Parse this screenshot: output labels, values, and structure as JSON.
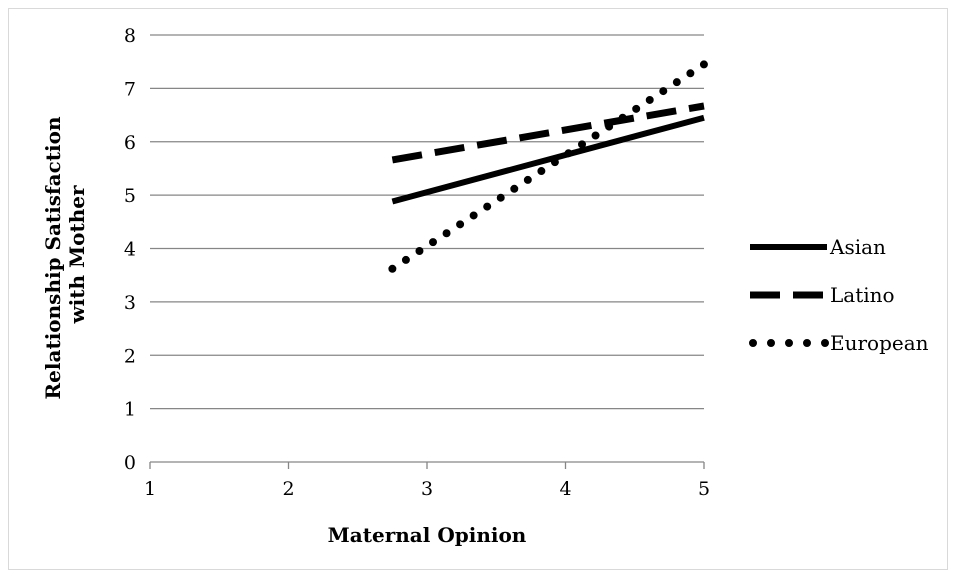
{
  "chart_data": {
    "type": "line",
    "xlabel": "Maternal Opinion",
    "ylabel_lines": [
      "Relationship Satisfaction",
      "with Mother"
    ],
    "xlim": [
      1,
      5
    ],
    "ylim": [
      0,
      8
    ],
    "x_ticks": [
      1,
      2,
      3,
      4,
      5
    ],
    "y_ticks": [
      0,
      1,
      2,
      3,
      4,
      5,
      6,
      7,
      8
    ],
    "grid": "horizontal",
    "legend_position": "right",
    "series": [
      {
        "name": "Asian",
        "style": "solid",
        "color": "#000000",
        "x": [
          2.75,
          5.0
        ],
        "y": [
          4.88,
          6.45
        ]
      },
      {
        "name": "Latino",
        "style": "dashed",
        "color": "#000000",
        "x": [
          2.75,
          5.0
        ],
        "y": [
          5.66,
          6.67
        ]
      },
      {
        "name": "European",
        "style": "dotted",
        "color": "#000000",
        "x": [
          2.75,
          5.0
        ],
        "y": [
          3.62,
          7.45
        ]
      }
    ]
  }
}
